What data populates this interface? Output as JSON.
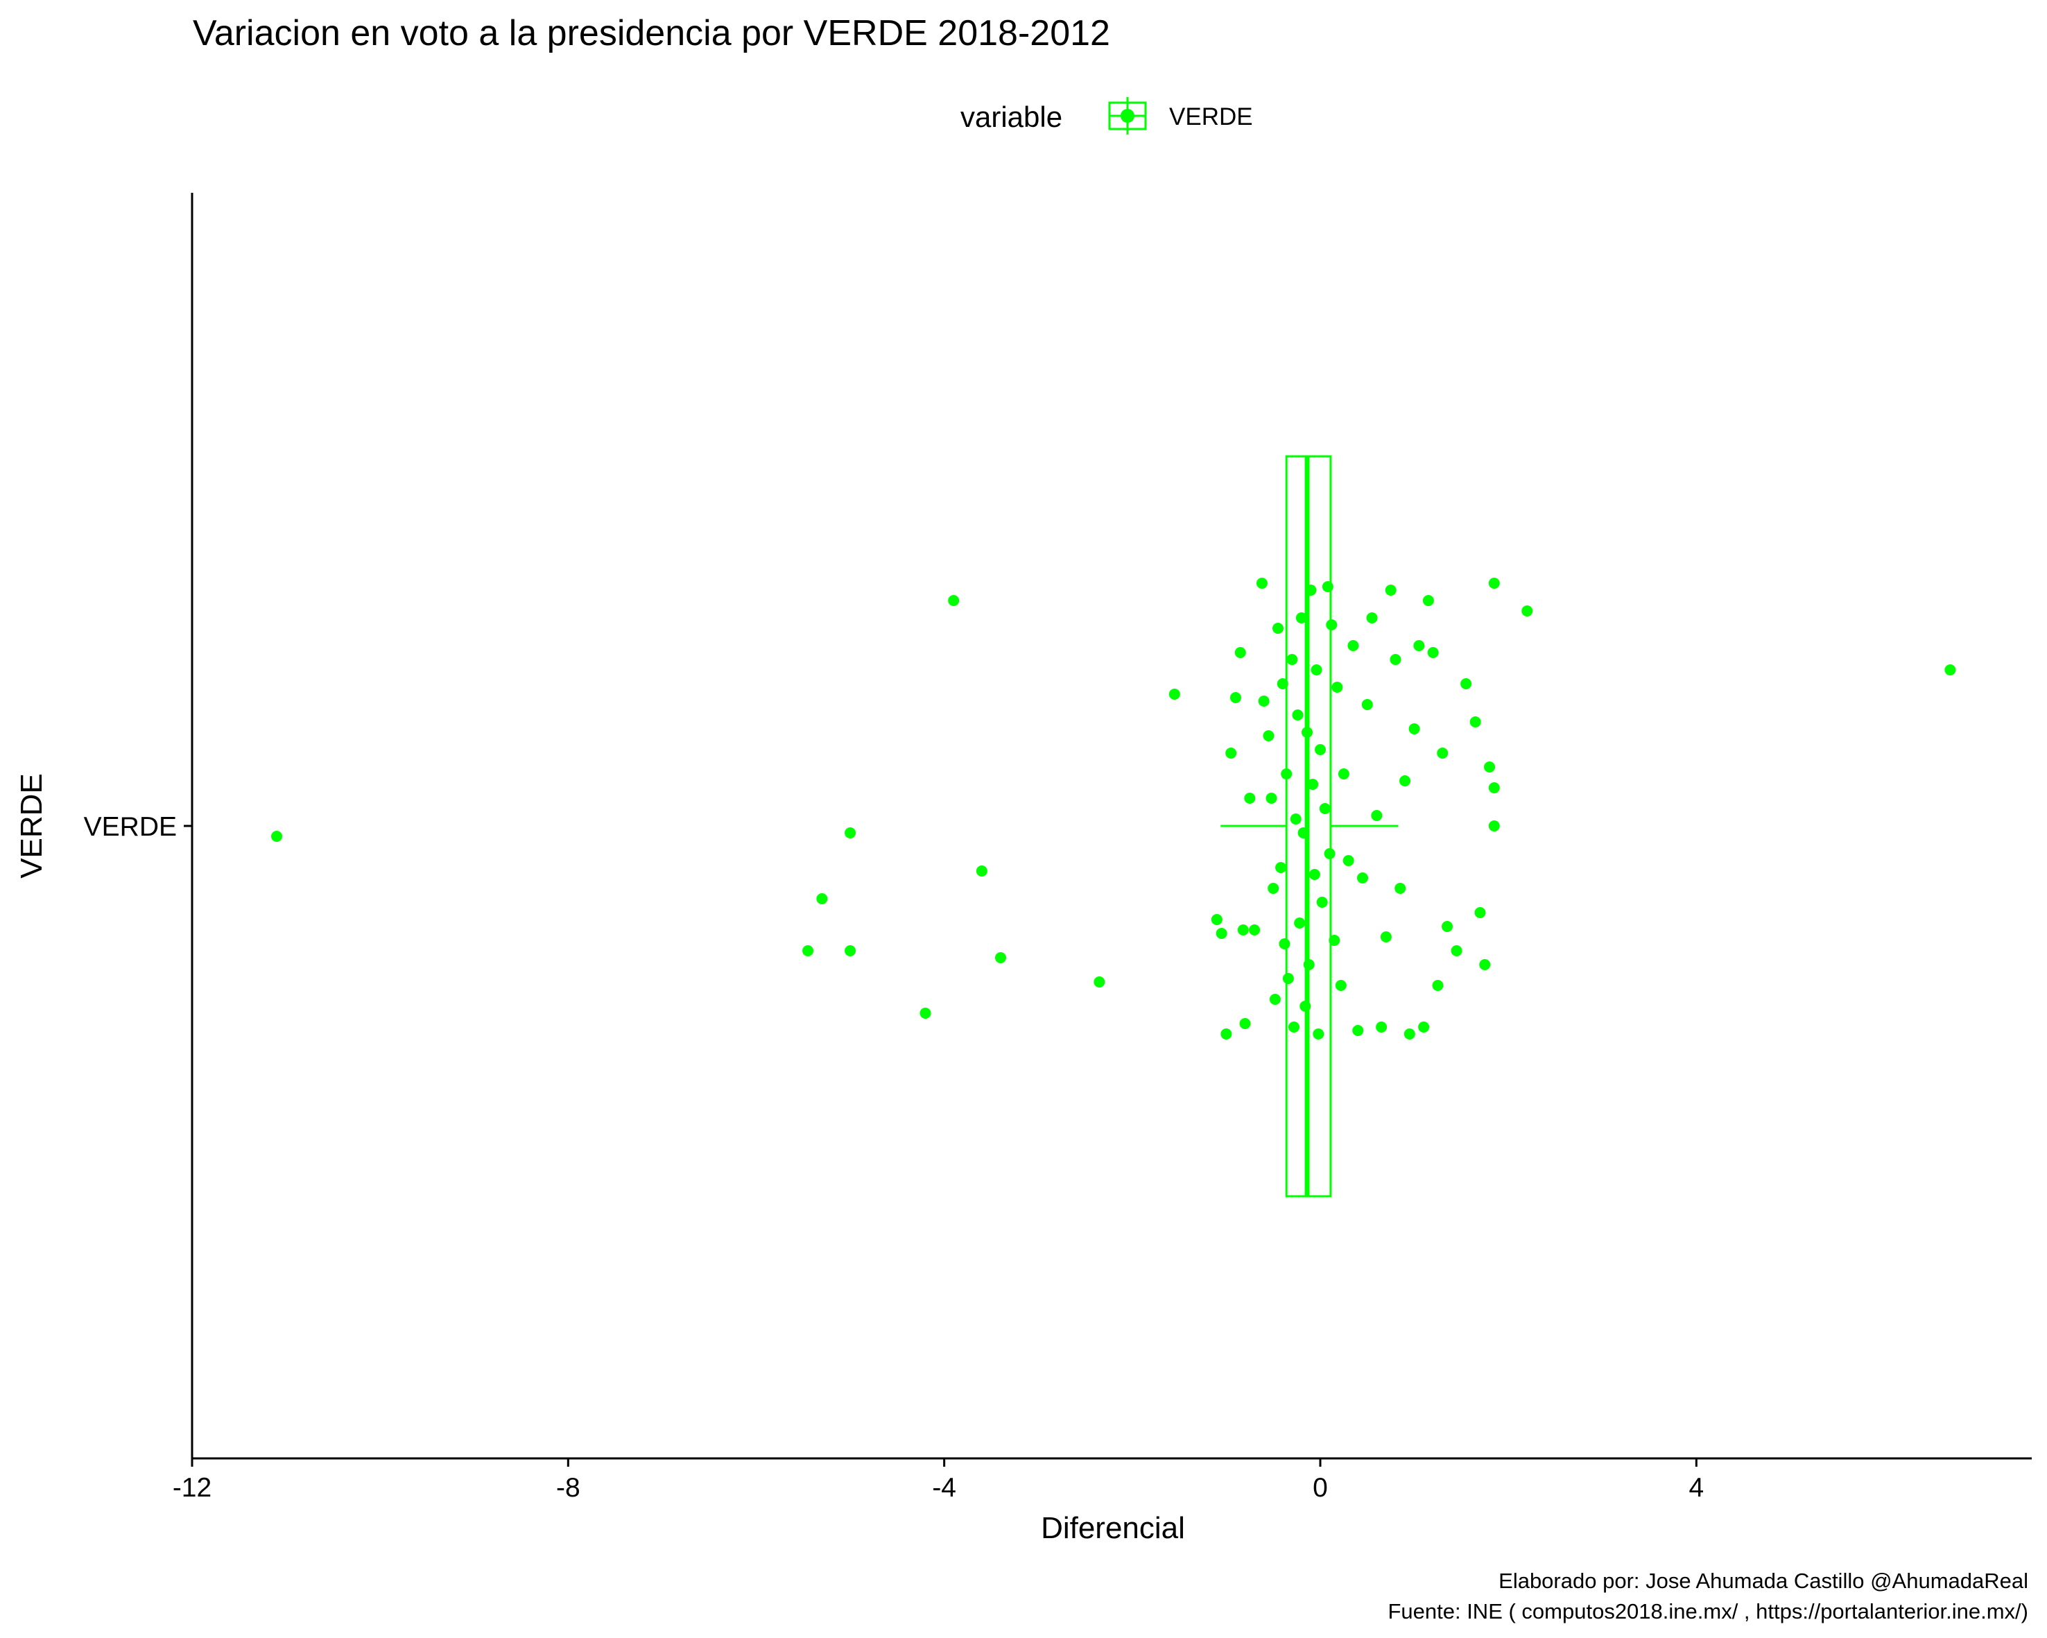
{
  "chart_data": {
    "type": "scatter",
    "title": "Variacion en voto a la presidencia por VERDE 2018-2012",
    "xlabel": "Diferencial",
    "ylabel": "VERDE",
    "category_label": "VERDE",
    "xlim": [
      -12,
      7.4
    ],
    "xticks": [
      -12,
      -8,
      -4,
      0,
      4
    ],
    "legend": {
      "title": "variable",
      "label": "VERDE",
      "position": "top"
    },
    "color": "#00ff00",
    "grid": false,
    "boxplot": {
      "q1": -0.36,
      "median": -0.14,
      "q3": 0.11,
      "whisker_low": -1.06,
      "whisker_high": 0.83
    },
    "series": [
      {
        "points": [
          [
            -11.1,
            -0.03
          ],
          [
            -5.0,
            -0.02
          ],
          [
            -5.3,
            -0.21
          ],
          [
            -5.45,
            -0.36
          ],
          [
            -5.0,
            -0.36
          ],
          [
            -4.2,
            -0.54
          ],
          [
            -3.9,
            0.65
          ],
          [
            -3.6,
            -0.13
          ],
          [
            -3.4,
            -0.38
          ],
          [
            -2.35,
            -0.45
          ],
          [
            -1.55,
            0.38
          ],
          [
            -1.1,
            -0.27
          ],
          [
            -1.05,
            -0.31
          ],
          [
            -1.0,
            -0.6
          ],
          [
            -0.95,
            0.21
          ],
          [
            -0.9,
            0.37
          ],
          [
            -0.85,
            0.5
          ],
          [
            -0.82,
            -0.3
          ],
          [
            -0.8,
            -0.57
          ],
          [
            -0.75,
            0.08
          ],
          [
            -0.7,
            -0.3
          ],
          [
            -0.62,
            0.7
          ],
          [
            -0.6,
            0.36
          ],
          [
            -0.55,
            0.26
          ],
          [
            -0.52,
            0.08
          ],
          [
            -0.5,
            -0.18
          ],
          [
            -0.48,
            -0.5
          ],
          [
            -0.45,
            0.57
          ],
          [
            -0.42,
            -0.12
          ],
          [
            -0.4,
            0.41
          ],
          [
            -0.38,
            -0.34
          ],
          [
            -0.36,
            0.15
          ],
          [
            -0.34,
            -0.44
          ],
          [
            -0.3,
            0.48
          ],
          [
            -0.28,
            -0.58
          ],
          [
            -0.26,
            0.02
          ],
          [
            -0.24,
            0.32
          ],
          [
            -0.22,
            -0.28
          ],
          [
            -0.2,
            0.6
          ],
          [
            -0.18,
            -0.02
          ],
          [
            -0.16,
            -0.52
          ],
          [
            -0.14,
            0.27
          ],
          [
            -0.12,
            -0.4
          ],
          [
            -0.1,
            0.68
          ],
          [
            -0.08,
            0.12
          ],
          [
            -0.06,
            -0.14
          ],
          [
            -0.04,
            0.45
          ],
          [
            -0.02,
            -0.6
          ],
          [
            0.0,
            0.22
          ],
          [
            0.02,
            -0.22
          ],
          [
            0.05,
            0.05
          ],
          [
            0.08,
            0.69
          ],
          [
            0.1,
            -0.08
          ],
          [
            0.12,
            0.58
          ],
          [
            0.15,
            -0.33
          ],
          [
            0.18,
            0.4
          ],
          [
            0.22,
            -0.46
          ],
          [
            0.25,
            0.15
          ],
          [
            0.3,
            -0.1
          ],
          [
            0.35,
            0.52
          ],
          [
            0.4,
            -0.59
          ],
          [
            0.45,
            -0.15
          ],
          [
            0.5,
            0.35
          ],
          [
            0.55,
            0.6
          ],
          [
            0.6,
            0.03
          ],
          [
            0.65,
            -0.58
          ],
          [
            0.7,
            -0.32
          ],
          [
            0.75,
            0.68
          ],
          [
            0.8,
            0.48
          ],
          [
            0.85,
            -0.18
          ],
          [
            0.9,
            0.13
          ],
          [
            0.95,
            -0.6
          ],
          [
            1.0,
            0.28
          ],
          [
            1.05,
            0.52
          ],
          [
            1.1,
            -0.58
          ],
          [
            1.15,
            0.65
          ],
          [
            1.2,
            0.5
          ],
          [
            1.25,
            -0.46
          ],
          [
            1.3,
            0.21
          ],
          [
            1.35,
            -0.29
          ],
          [
            1.45,
            -0.36
          ],
          [
            1.55,
            0.41
          ],
          [
            1.65,
            0.3
          ],
          [
            1.7,
            -0.25
          ],
          [
            1.75,
            -0.4
          ],
          [
            1.8,
            0.17
          ],
          [
            1.85,
            0.0
          ],
          [
            1.85,
            0.11
          ],
          [
            1.85,
            0.7
          ],
          [
            2.2,
            0.62
          ],
          [
            6.7,
            0.45
          ]
        ]
      }
    ],
    "caption_lines": [
      "Elaborado por: Jose Ahumada Castillo @AhumadaReal",
      "Fuente: INE ( computos2018.ine.mx/ , https://portalanterior.ine.mx/)"
    ]
  }
}
